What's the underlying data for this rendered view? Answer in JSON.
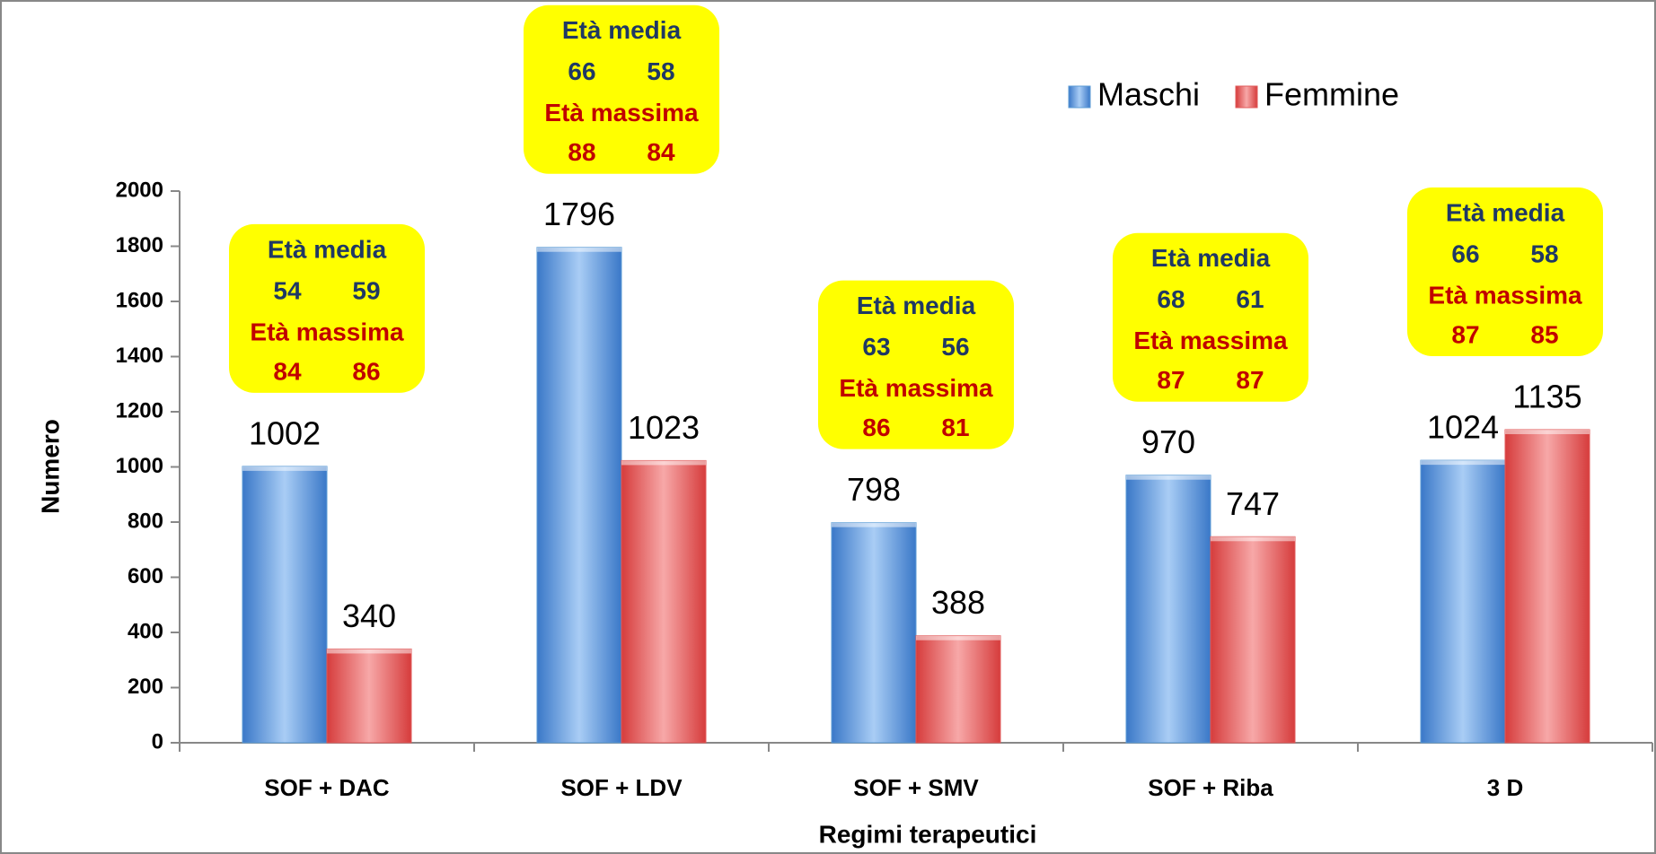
{
  "chart_data": {
    "type": "bar",
    "x_label": "Regimi terapeutici",
    "y_label": "Numero",
    "categories": [
      "SOF + DAC",
      "SOF + LDV",
      "SOF + SMV",
      "SOF + Riba",
      "3 D"
    ],
    "series": [
      {
        "name": "Maschi",
        "color": "#5b9bd5",
        "values": [
          1002,
          1796,
          798,
          970,
          1024
        ]
      },
      {
        "name": "Femmine",
        "color": "#e05a5a",
        "values": [
          340,
          1023,
          388,
          747,
          1135
        ]
      }
    ],
    "ylim": [
      0,
      2000
    ],
    "yticks": [
      0,
      200,
      400,
      600,
      800,
      1000,
      1200,
      1400,
      1600,
      1800,
      2000
    ],
    "legend": "top-right",
    "annotations": [
      {
        "mean_label": "Età media",
        "mean": [
          54,
          59
        ],
        "max_label": "Età massima",
        "max": [
          84,
          86
        ]
      },
      {
        "mean_label": "Età media",
        "mean": [
          66,
          58
        ],
        "max_label": "Età massima",
        "max": [
          88,
          84
        ]
      },
      {
        "mean_label": "Età media",
        "mean": [
          63,
          56
        ],
        "max_label": "Età massima",
        "max": [
          86,
          81
        ]
      },
      {
        "mean_label": "Età media",
        "mean": [
          68,
          61
        ],
        "max_label": "Età massima",
        "max": [
          87,
          87
        ]
      },
      {
        "mean_label": "Età media",
        "mean": [
          66,
          58
        ],
        "max_label": "Età massima",
        "max": [
          87,
          85
        ]
      }
    ]
  }
}
